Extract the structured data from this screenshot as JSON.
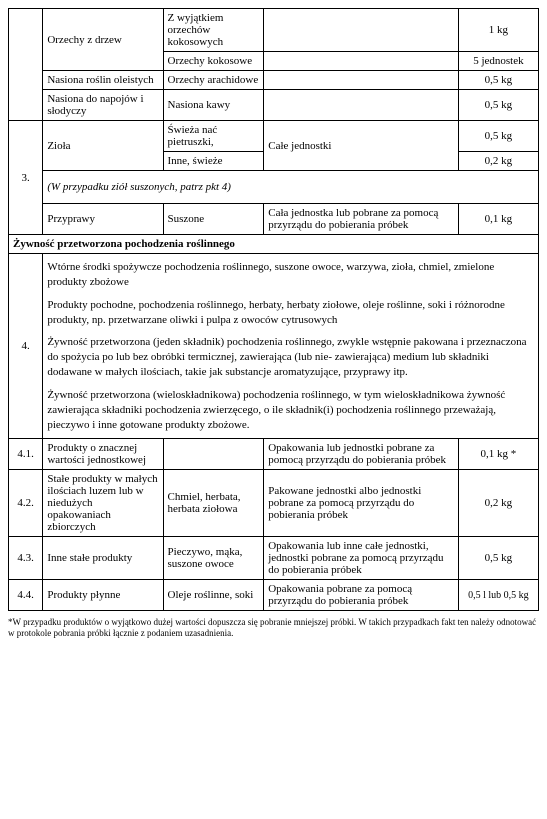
{
  "rows": {
    "nuts": {
      "name": "Orzechy z drzew",
      "sub1": "Z wyjątkiem orzechów kokosowych",
      "qty1": "1 kg",
      "sub2": "Orzechy kokosowe",
      "qty2": "5 jednostek"
    },
    "oilseeds": {
      "name": "Nasiona roślin oleistych",
      "sub": "Orzechy arachidowe",
      "qty": "0,5 kg"
    },
    "drinkSeeds": {
      "name": "Nasiona do napojów i słodyczy",
      "sub": "Nasiona kawy",
      "qty": "0,5 kg"
    },
    "herbs": {
      "name": "Zioła",
      "sub1": "Świeża nać pietruszki,",
      "sub2": "Inne, świeże",
      "mid": "Całe jednostki",
      "qty1": "0,5 kg",
      "qty2": "0,2 kg"
    },
    "herbsNote": "(W przypadku ziół suszonych, patrz pkt 4)",
    "spices": {
      "name": "Przyprawy",
      "sub": "Suszone",
      "mid": "Cała jednostka  lub pobrane za pomocą przyrządu do pobierania próbek",
      "qty": "0,1 kg"
    },
    "num3": "3.",
    "section": "Żywność przetworzona pochodzenia roślinnego",
    "num4": "4.",
    "desc": {
      "p1": "Wtórne środki spożywcze pochodzenia roślinnego, suszone owoce, warzywa, zioła, chmiel, zmielone produkty zbożowe",
      "p2": "Produkty pochodne, pochodzenia roślinnego, herbaty, herbaty ziołowe, oleje roślinne, soki i różnorodne produkty, np. przetwarzane oliwki i pulpa z owoców cytrusowych",
      "p3": "Żywność przetworzona (jeden składnik) pochodzenia roślinnego, zwykle wstępnie pakowana i przeznaczona do spożycia po lub bez obróbki termicznej, zawierająca (lub nie- zawierająca) medium lub składniki dodawane w małych ilościach, takie jak substancje aromatyzujące, przyprawy itp.",
      "p4": "Żywność przetworzona (wieloskładnikowa) pochodzenia roślinnego, w tym wieloskładnikowa żywność zawierająca składniki pochodzenia zwierzęcego, o ile składnik(i) pochodzenia roślinnego przeważają, pieczywo i inne gotowane produkty zbożowe."
    },
    "r41": {
      "num": "4.1.",
      "name": "Produkty o znacznej wartości jednostkowej",
      "sub": "",
      "mid": "Opakowania lub jednostki pobrane za pomocą przyrządu do pobierania próbek",
      "qty": "0,1 kg *"
    },
    "r42": {
      "num": "4.2.",
      "name": "Stałe produkty w małych ilościach luzem lub w niedużych opakowaniach zbiorczych",
      "sub": "Chmiel, herbata, herbata ziołowa",
      "mid": "Pakowane jednostki albo jednostki pobrane za pomocą przyrządu do pobierania próbek",
      "qty": "0,2 kg"
    },
    "r43": {
      "num": "4.3.",
      "name": "Inne stałe produkty",
      "sub": "Pieczywo, mąka, suszone owoce",
      "mid": "Opakowania lub inne całe jednostki, jednostki pobrane za pomocą przyrządu do pobierania próbek",
      "qty": "0,5 kg"
    },
    "r44": {
      "num": "4.4.",
      "name": "Produkty płynne",
      "sub": "Oleje roślinne, soki",
      "mid": "Opakowania pobrane za pomocą przyrządu do pobierania próbek",
      "qty": "0,5 l lub 0,5 kg"
    }
  },
  "footnote": "*W przypadku produktów o wyjątkowo dużej wartości dopuszcza się pobranie mniejszej próbki. W takich przypadkach fakt ten należy odnotować w protokole pobrania próbki łącznie z podaniem uzasadnienia."
}
